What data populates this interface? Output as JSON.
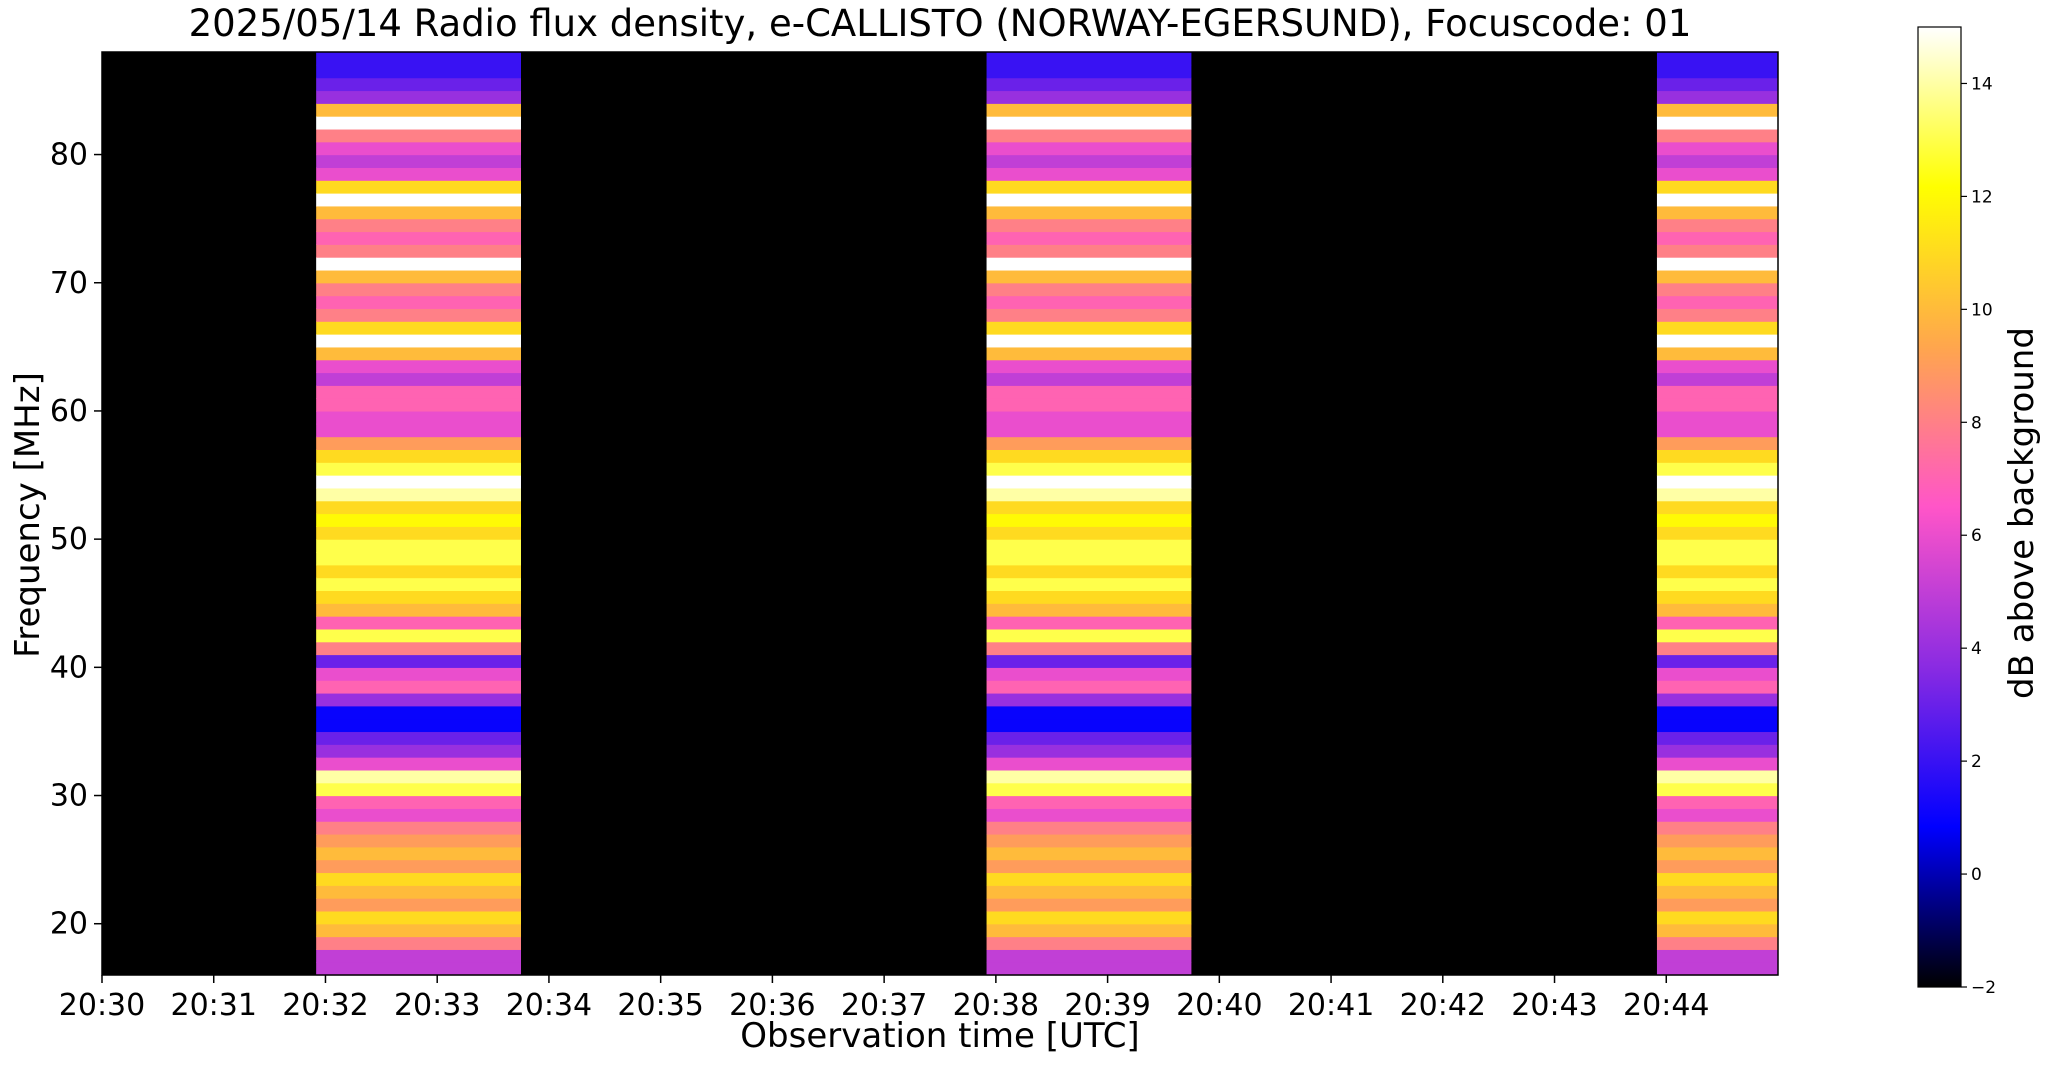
{
  "chart_data": {
    "type": "heatmap",
    "title": "2025/05/14  Radio flux density, e-CALLISTO (NORWAY-EGERSUND), Focuscode: 01",
    "xlabel": "Observation time [UTC]",
    "ylabel": "Frequency [MHz]",
    "colorbar_label": "dB above background",
    "colormap": "gnuplot2",
    "colormap_stops": [
      "#000000",
      "#0000ff",
      "#8a2be2",
      "#ff55c8",
      "#ffa64d",
      "#ffff00",
      "#ffffff"
    ],
    "x_ticks": [
      "20:30",
      "20:31",
      "20:32",
      "20:33",
      "20:34",
      "20:35",
      "20:36",
      "20:37",
      "20:38",
      "20:39",
      "20:40",
      "20:41",
      "20:42",
      "20:43",
      "20:44"
    ],
    "y_ticks": [
      20,
      30,
      40,
      50,
      60,
      70,
      80
    ],
    "ylim": [
      16,
      88
    ],
    "xlim": [
      "20:30:00",
      "20:45:00"
    ],
    "colorbar_ticks": [
      -2,
      0,
      2,
      4,
      6,
      8,
      10,
      12,
      14
    ],
    "colorbar_range": [
      -2,
      15
    ],
    "bright_segments": [
      {
        "start": "20:31:55",
        "end": "20:33:45"
      },
      {
        "start": "20:37:55",
        "end": "20:39:45"
      },
      {
        "start": "20:43:55",
        "end": "20:45:00"
      }
    ],
    "band_profile_mhz_db": [
      [
        16,
        5
      ],
      [
        17,
        5
      ],
      [
        18,
        8
      ],
      [
        19,
        10
      ],
      [
        20,
        11
      ],
      [
        21,
        9
      ],
      [
        22,
        10
      ],
      [
        23,
        11
      ],
      [
        24,
        9
      ],
      [
        25,
        10
      ],
      [
        26,
        9
      ],
      [
        27,
        8
      ],
      [
        28,
        6
      ],
      [
        29,
        7
      ],
      [
        30,
        13
      ],
      [
        31,
        14
      ],
      [
        32,
        6
      ],
      [
        33,
        4
      ],
      [
        34,
        3
      ],
      [
        35,
        1
      ],
      [
        36,
        1
      ],
      [
        37,
        4
      ],
      [
        38,
        7
      ],
      [
        39,
        6
      ],
      [
        40,
        3
      ],
      [
        41,
        8
      ],
      [
        42,
        13
      ],
      [
        43,
        7
      ],
      [
        44,
        10
      ],
      [
        45,
        11
      ],
      [
        46,
        13
      ],
      [
        47,
        11
      ],
      [
        48,
        13
      ],
      [
        49,
        13
      ],
      [
        50,
        11
      ],
      [
        51,
        12
      ],
      [
        52,
        11
      ],
      [
        53,
        14
      ],
      [
        54,
        15
      ],
      [
        55,
        13
      ],
      [
        56,
        11
      ],
      [
        57,
        9
      ],
      [
        58,
        6
      ],
      [
        59,
        6
      ],
      [
        60,
        7
      ],
      [
        61,
        7
      ],
      [
        62,
        5
      ],
      [
        63,
        6
      ],
      [
        64,
        10
      ],
      [
        65,
        15
      ],
      [
        66,
        11
      ],
      [
        67,
        8
      ],
      [
        68,
        7
      ],
      [
        69,
        8
      ],
      [
        70,
        10
      ],
      [
        71,
        15
      ],
      [
        72,
        8
      ],
      [
        73,
        7
      ],
      [
        74,
        8
      ],
      [
        75,
        10
      ],
      [
        76,
        15
      ],
      [
        77,
        11
      ],
      [
        78,
        6
      ],
      [
        79,
        5
      ],
      [
        80,
        6
      ],
      [
        81,
        8
      ],
      [
        82,
        15
      ],
      [
        83,
        10
      ],
      [
        84,
        4
      ],
      [
        85,
        3
      ],
      [
        86,
        2
      ],
      [
        87,
        2
      ],
      [
        88,
        1
      ]
    ],
    "background_db": -2
  }
}
